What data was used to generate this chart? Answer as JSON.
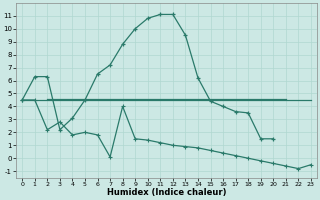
{
  "xlabel": "Humidex (Indice chaleur)",
  "background_color": "#cce8e4",
  "grid_color": "#b0d8d0",
  "line_color": "#2a7a6a",
  "xlim": [
    -0.5,
    23.5
  ],
  "ylim": [
    -1.5,
    12.0
  ],
  "xticks": [
    0,
    1,
    2,
    3,
    4,
    5,
    6,
    7,
    8,
    9,
    10,
    11,
    12,
    13,
    14,
    15,
    16,
    17,
    18,
    19,
    20,
    21,
    22,
    23
  ],
  "yticks": [
    -1,
    0,
    1,
    2,
    3,
    4,
    5,
    6,
    7,
    8,
    9,
    10,
    11
  ],
  "line1_x": [
    0,
    1,
    2,
    3,
    4,
    5,
    6,
    7,
    8,
    9,
    10,
    11,
    12,
    13,
    14,
    15,
    16,
    17,
    18,
    19,
    20,
    21,
    22,
    23
  ],
  "line1_y": [
    4.5,
    6.3,
    6.3,
    2.2,
    3.1,
    4.5,
    6.5,
    7.2,
    8.8,
    10.0,
    10.8,
    11.1,
    11.1,
    9.5,
    6.2,
    4.4,
    4.0,
    3.6,
    3.5,
    1.5,
    1.5,
    null,
    null,
    null
  ],
  "line2_x": [
    0,
    1,
    2,
    3,
    4,
    5,
    6,
    7,
    8,
    9,
    10,
    11,
    12,
    13,
    14,
    15,
    16,
    17,
    18,
    19,
    20,
    21,
    22,
    23
  ],
  "line2_y": [
    4.5,
    4.5,
    4.5,
    4.5,
    4.5,
    4.5,
    4.5,
    4.5,
    4.5,
    4.5,
    4.5,
    4.5,
    4.5,
    4.5,
    4.5,
    4.5,
    4.5,
    4.5,
    4.5,
    4.5,
    4.5,
    4.5,
    4.5,
    4.5
  ],
  "line3_x": [
    2,
    3,
    4,
    5,
    6,
    7,
    8,
    9,
    10,
    11,
    12,
    13,
    14,
    15,
    16,
    17,
    18,
    19,
    20,
    21
  ],
  "line3_y": [
    4.6,
    4.6,
    4.6,
    4.6,
    4.6,
    4.6,
    4.6,
    4.6,
    4.6,
    4.6,
    4.6,
    4.6,
    4.6,
    4.6,
    4.6,
    4.6,
    4.6,
    4.6,
    4.6,
    4.6
  ],
  "line4_x": [
    0,
    1,
    2,
    3,
    4,
    5,
    6,
    7,
    8,
    9,
    10,
    11,
    12,
    13,
    14,
    15,
    16,
    17,
    18,
    19,
    20,
    21,
    22,
    23
  ],
  "line4_y": [
    4.5,
    4.5,
    2.2,
    2.8,
    1.8,
    2.0,
    1.8,
    0.1,
    4.0,
    1.5,
    1.4,
    1.2,
    1.0,
    0.9,
    0.8,
    0.6,
    0.4,
    0.2,
    0.0,
    -0.2,
    -0.4,
    -0.6,
    -0.8,
    -0.5
  ]
}
